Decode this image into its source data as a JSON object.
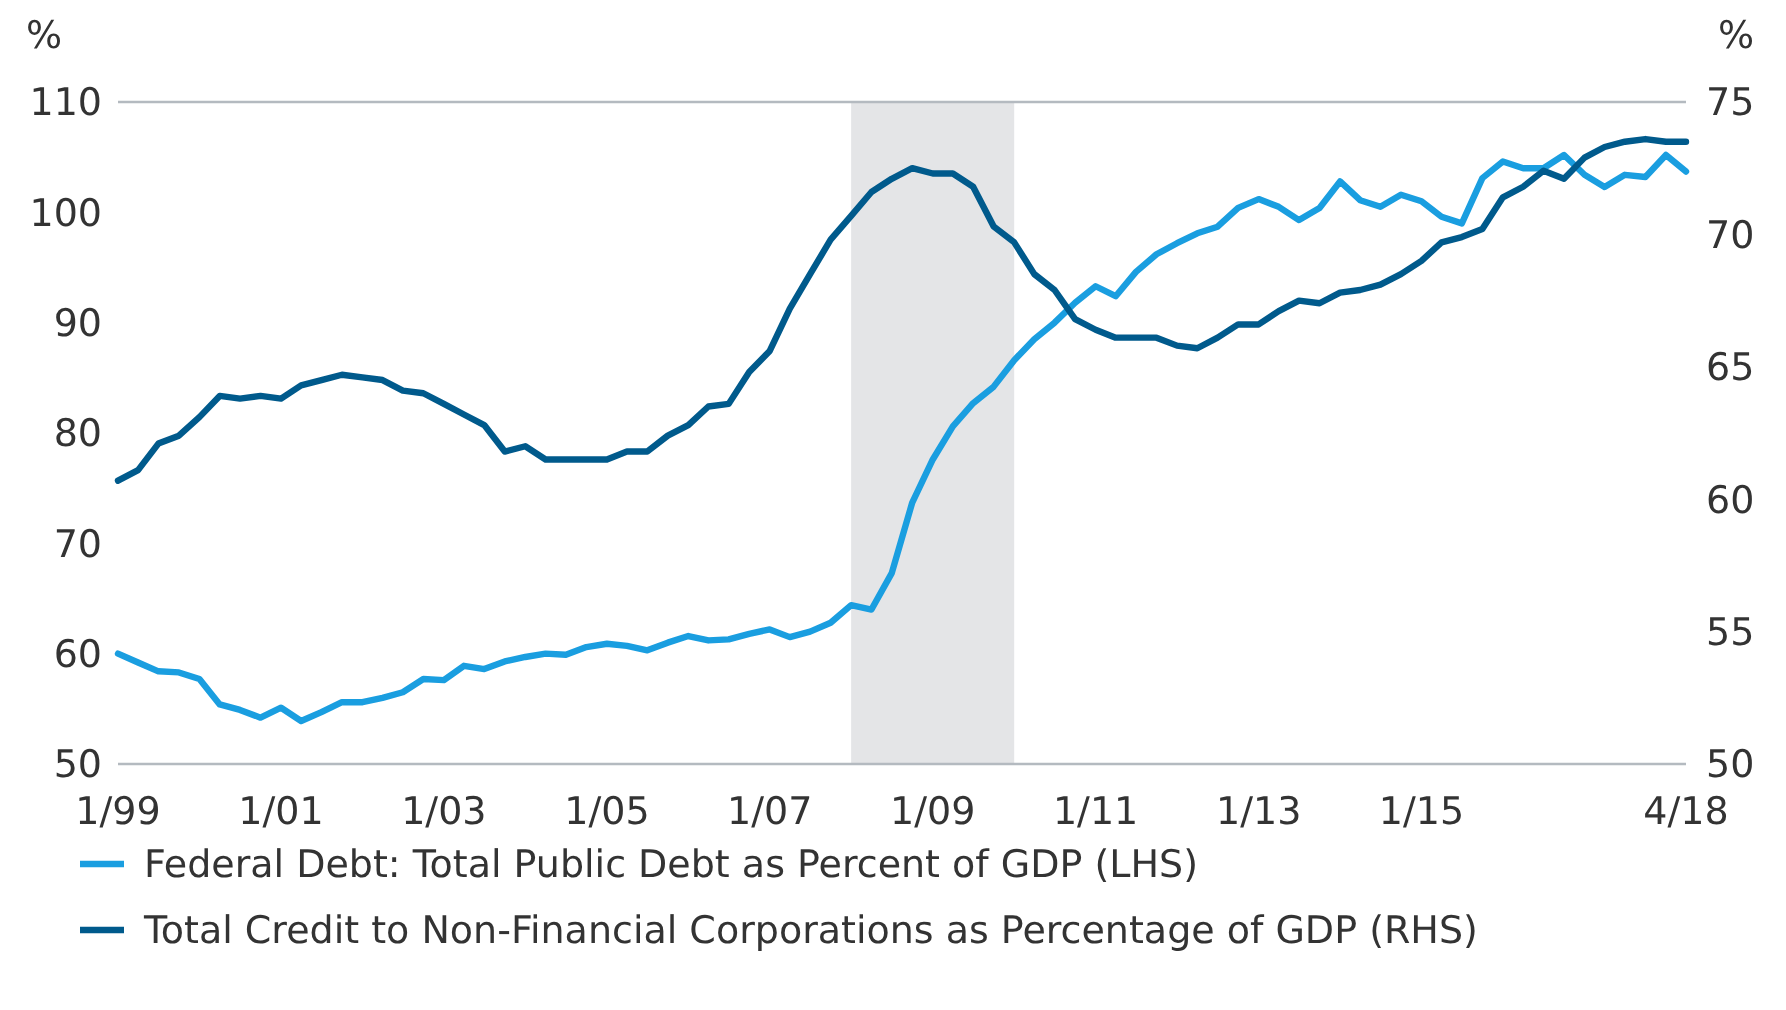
{
  "chart_data": {
    "type": "line",
    "ylabel": "%",
    "y2label": "%",
    "x": [
      "1999-01",
      "1999-04",
      "1999-07",
      "1999-10",
      "2000-01",
      "2000-04",
      "2000-07",
      "2000-10",
      "2001-01",
      "2001-04",
      "2001-07",
      "2001-10",
      "2002-01",
      "2002-04",
      "2002-07",
      "2002-10",
      "2003-01",
      "2003-04",
      "2003-07",
      "2003-10",
      "2004-01",
      "2004-04",
      "2004-07",
      "2004-10",
      "2005-01",
      "2005-04",
      "2005-07",
      "2005-10",
      "2006-01",
      "2006-04",
      "2006-07",
      "2006-10",
      "2007-01",
      "2007-04",
      "2007-07",
      "2007-10",
      "2008-01",
      "2008-04",
      "2008-07",
      "2008-10",
      "2009-01",
      "2009-04",
      "2009-07",
      "2009-10",
      "2010-01",
      "2010-04",
      "2010-07",
      "2010-10",
      "2011-01",
      "2011-04",
      "2011-07",
      "2011-10",
      "2012-01",
      "2012-04",
      "2012-07",
      "2012-10",
      "2013-01",
      "2013-04",
      "2013-07",
      "2013-10",
      "2014-01",
      "2014-04",
      "2014-07",
      "2014-10",
      "2015-01",
      "2015-04",
      "2015-07",
      "2015-10",
      "2016-01",
      "2016-04",
      "2016-07",
      "2016-10",
      "2017-01",
      "2017-04",
      "2017-07",
      "2017-10",
      "2018-01",
      "2018-04"
    ],
    "series": [
      {
        "name": "Federal Debt: Total Public Debt as Percent of GDP (LHS)",
        "color": "#1a9ee0",
        "values": [
          60.0,
          59.2,
          58.4,
          58.3,
          57.7,
          55.4,
          54.9,
          54.2,
          55.1,
          53.9,
          54.7,
          55.6,
          55.6,
          56.0,
          56.5,
          57.7,
          57.6,
          58.9,
          58.6,
          59.3,
          59.7,
          60.0,
          59.9,
          60.6,
          60.9,
          60.7,
          60.3,
          61.0,
          61.6,
          61.2,
          61.3,
          61.8,
          62.2,
          61.5,
          62.0,
          62.8,
          64.4,
          64.0,
          67.3,
          73.7,
          77.6,
          80.6,
          82.7,
          84.2,
          86.6,
          88.5,
          90.0,
          91.8,
          93.3,
          92.4,
          94.6,
          96.2,
          97.2,
          98.1,
          98.7,
          100.4,
          101.2,
          100.5,
          99.3,
          100.4,
          102.8,
          101.1,
          100.5,
          101.6,
          101.0,
          99.6,
          99.0,
          103.1,
          104.6,
          104.0,
          104.0,
          105.2,
          103.4,
          102.3,
          103.4,
          103.2,
          105.2,
          103.7
        ]
      },
      {
        "name": "Total Credit to Non-Financial Corporations as Percentage of GDP (RHS)",
        "color": "#005a8c",
        "axis": "y2",
        "values": [
          60.7,
          61.1,
          62.1,
          62.4,
          63.1,
          63.9,
          63.8,
          63.9,
          63.8,
          64.3,
          64.5,
          64.7,
          64.6,
          64.5,
          64.1,
          64.0,
          63.6,
          63.2,
          62.8,
          61.8,
          62.0,
          61.5,
          61.5,
          61.5,
          61.5,
          61.8,
          61.8,
          62.4,
          62.8,
          63.5,
          63.6,
          64.8,
          65.6,
          67.2,
          68.5,
          69.8,
          70.7,
          71.6,
          72.1,
          72.5,
          72.3,
          72.3,
          71.8,
          70.3,
          69.7,
          68.5,
          67.9,
          66.8,
          66.4,
          66.1,
          66.1,
          66.1,
          65.8,
          65.7,
          66.1,
          66.6,
          66.6,
          67.1,
          67.5,
          67.4,
          67.8,
          67.9,
          68.1,
          68.5,
          69.0,
          69.7,
          69.9,
          70.2,
          71.4,
          71.8,
          72.4,
          72.1,
          72.9,
          73.3,
          73.5,
          73.6,
          73.5,
          73.5
        ]
      }
    ],
    "xlim": [
      "1999-01",
      "2018-04"
    ],
    "xticks": [
      {
        "value": "1999-01",
        "label": "1/99"
      },
      {
        "value": "2001-01",
        "label": "1/01"
      },
      {
        "value": "2003-01",
        "label": "1/03"
      },
      {
        "value": "2005-01",
        "label": "1/05"
      },
      {
        "value": "2007-01",
        "label": "1/07"
      },
      {
        "value": "2009-01",
        "label": "1/09"
      },
      {
        "value": "2011-01",
        "label": "1/11"
      },
      {
        "value": "2013-01",
        "label": "1/13"
      },
      {
        "value": "2015-01",
        "label": "1/15"
      },
      {
        "value": "2018-04",
        "label": "4/18"
      }
    ],
    "ylim": [
      50,
      110
    ],
    "yticks": [
      50,
      60,
      70,
      80,
      90,
      100,
      110
    ],
    "y2lim": [
      50,
      75
    ],
    "y2ticks": [
      50,
      55,
      60,
      65,
      70,
      75
    ],
    "bands": [
      {
        "axis": "x",
        "from": "2008-01",
        "to": "2010-01",
        "color": "#e4e5e7"
      }
    ],
    "legend": "bottom",
    "grid": false,
    "marker": "none",
    "line_style": "solid"
  }
}
